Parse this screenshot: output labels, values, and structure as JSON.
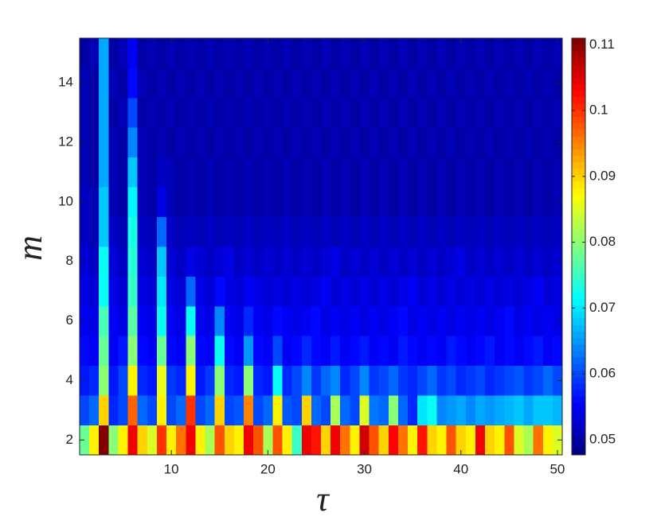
{
  "chart_data": {
    "type": "heatmap",
    "xlabel": "τ",
    "ylabel": "m",
    "colormap": "jet",
    "x": [
      1,
      2,
      3,
      4,
      5,
      6,
      7,
      8,
      9,
      10,
      11,
      12,
      13,
      14,
      15,
      16,
      17,
      18,
      19,
      20,
      21,
      22,
      23,
      24,
      25,
      26,
      27,
      28,
      29,
      30,
      31,
      32,
      33,
      34,
      35,
      36,
      37,
      38,
      39,
      40,
      41,
      42,
      43,
      44,
      45,
      46,
      47,
      48,
      49,
      50
    ],
    "y": [
      2,
      3,
      4,
      5,
      6,
      7,
      8,
      9,
      10,
      11,
      12,
      13,
      14,
      15
    ],
    "xlim": [
      0.5,
      50.5
    ],
    "ylim": [
      1.5,
      15.5
    ],
    "xticks": [
      10,
      20,
      30,
      40,
      50
    ],
    "yticks": [
      2,
      4,
      6,
      8,
      10,
      12,
      14
    ],
    "clim": [
      0.0477,
      0.111
    ],
    "cticks": [
      0.05,
      0.06,
      0.07,
      0.08,
      0.09,
      0.1,
      0.11
    ],
    "z": [
      [
        0.078,
        0.088,
        0.111,
        0.08,
        0.088,
        0.104,
        0.09,
        0.085,
        0.1,
        0.088,
        0.096,
        0.104,
        0.088,
        0.082,
        0.098,
        0.09,
        0.088,
        0.104,
        0.098,
        0.082,
        0.098,
        0.088,
        0.075,
        0.104,
        0.102,
        0.09,
        0.104,
        0.096,
        0.088,
        0.106,
        0.098,
        0.09,
        0.103,
        0.096,
        0.088,
        0.102,
        0.09,
        0.088,
        0.098,
        0.09,
        0.088,
        0.104,
        0.09,
        0.088,
        0.098,
        0.085,
        0.082,
        0.096,
        0.088,
        0.085
      ],
      [
        0.06,
        0.062,
        0.09,
        0.058,
        0.06,
        0.097,
        0.062,
        0.06,
        0.088,
        0.06,
        0.062,
        0.1,
        0.06,
        0.062,
        0.09,
        0.06,
        0.061,
        0.095,
        0.06,
        0.062,
        0.088,
        0.061,
        0.06,
        0.09,
        0.062,
        0.06,
        0.082,
        0.062,
        0.06,
        0.085,
        0.063,
        0.062,
        0.08,
        0.062,
        0.058,
        0.07,
        0.072,
        0.064,
        0.065,
        0.066,
        0.064,
        0.066,
        0.065,
        0.066,
        0.067,
        0.068,
        0.066,
        0.068,
        0.068,
        0.067
      ],
      [
        0.057,
        0.058,
        0.08,
        0.057,
        0.06,
        0.088,
        0.058,
        0.057,
        0.086,
        0.059,
        0.058,
        0.088,
        0.057,
        0.059,
        0.08,
        0.058,
        0.057,
        0.08,
        0.058,
        0.057,
        0.072,
        0.058,
        0.06,
        0.064,
        0.059,
        0.062,
        0.064,
        0.058,
        0.06,
        0.064,
        0.059,
        0.06,
        0.062,
        0.059,
        0.058,
        0.06,
        0.062,
        0.059,
        0.06,
        0.058,
        0.059,
        0.06,
        0.058,
        0.059,
        0.06,
        0.061,
        0.059,
        0.06,
        0.062,
        0.06
      ],
      [
        0.056,
        0.055,
        0.078,
        0.055,
        0.057,
        0.08,
        0.056,
        0.055,
        0.078,
        0.056,
        0.055,
        0.08,
        0.056,
        0.055,
        0.072,
        0.056,
        0.055,
        0.065,
        0.056,
        0.055,
        0.06,
        0.055,
        0.056,
        0.058,
        0.056,
        0.055,
        0.057,
        0.055,
        0.056,
        0.057,
        0.055,
        0.056,
        0.055,
        0.057,
        0.056,
        0.055,
        0.056,
        0.055,
        0.057,
        0.056,
        0.055,
        0.056,
        0.057,
        0.055,
        0.056,
        0.055,
        0.056,
        0.057,
        0.055,
        0.056
      ],
      [
        0.055,
        0.054,
        0.076,
        0.055,
        0.054,
        0.077,
        0.055,
        0.054,
        0.072,
        0.055,
        0.054,
        0.072,
        0.055,
        0.054,
        0.064,
        0.055,
        0.054,
        0.058,
        0.055,
        0.054,
        0.056,
        0.055,
        0.054,
        0.055,
        0.056,
        0.054,
        0.055,
        0.054,
        0.055,
        0.054,
        0.055,
        0.054,
        0.055,
        0.056,
        0.054,
        0.055,
        0.054,
        0.055,
        0.054,
        0.055,
        0.054,
        0.055,
        0.054,
        0.055,
        0.056,
        0.054,
        0.055,
        0.054,
        0.055,
        0.054
      ],
      [
        0.054,
        0.053,
        0.072,
        0.054,
        0.053,
        0.075,
        0.054,
        0.053,
        0.07,
        0.054,
        0.053,
        0.062,
        0.054,
        0.053,
        0.056,
        0.054,
        0.053,
        0.055,
        0.054,
        0.053,
        0.054,
        0.053,
        0.054,
        0.053,
        0.054,
        0.055,
        0.053,
        0.054,
        0.053,
        0.054,
        0.053,
        0.054,
        0.053,
        0.054,
        0.055,
        0.053,
        0.054,
        0.053,
        0.054,
        0.053,
        0.054,
        0.053,
        0.054,
        0.053,
        0.054,
        0.053,
        0.054,
        0.055,
        0.053,
        0.054
      ],
      [
        0.053,
        0.052,
        0.072,
        0.053,
        0.052,
        0.074,
        0.053,
        0.052,
        0.068,
        0.053,
        0.052,
        0.054,
        0.053,
        0.052,
        0.053,
        0.054,
        0.052,
        0.053,
        0.052,
        0.053,
        0.052,
        0.053,
        0.052,
        0.053,
        0.052,
        0.053,
        0.054,
        0.052,
        0.053,
        0.052,
        0.053,
        0.052,
        0.053,
        0.052,
        0.053,
        0.052,
        0.053,
        0.052,
        0.053,
        0.054,
        0.052,
        0.053,
        0.052,
        0.053,
        0.052,
        0.053,
        0.052,
        0.053,
        0.052,
        0.053
      ],
      [
        0.052,
        0.051,
        0.068,
        0.052,
        0.051,
        0.073,
        0.052,
        0.051,
        0.062,
        0.052,
        0.051,
        0.052,
        0.051,
        0.052,
        0.051,
        0.052,
        0.051,
        0.052,
        0.051,
        0.052,
        0.051,
        0.052,
        0.051,
        0.052,
        0.051,
        0.052,
        0.051,
        0.052,
        0.051,
        0.052,
        0.051,
        0.052,
        0.051,
        0.052,
        0.051,
        0.052,
        0.051,
        0.052,
        0.051,
        0.052,
        0.051,
        0.052,
        0.051,
        0.052,
        0.051,
        0.052,
        0.051,
        0.052,
        0.051,
        0.052
      ],
      [
        0.052,
        0.051,
        0.068,
        0.051,
        0.05,
        0.071,
        0.051,
        0.05,
        0.054,
        0.051,
        0.05,
        0.051,
        0.05,
        0.051,
        0.05,
        0.051,
        0.05,
        0.051,
        0.05,
        0.051,
        0.05,
        0.051,
        0.05,
        0.051,
        0.05,
        0.051,
        0.05,
        0.051,
        0.05,
        0.051,
        0.05,
        0.051,
        0.05,
        0.051,
        0.05,
        0.051,
        0.05,
        0.051,
        0.05,
        0.051,
        0.05,
        0.051,
        0.05,
        0.051,
        0.05,
        0.051,
        0.05,
        0.051,
        0.05,
        0.051
      ],
      [
        0.051,
        0.05,
        0.066,
        0.051,
        0.05,
        0.068,
        0.051,
        0.05,
        0.052,
        0.051,
        0.05,
        0.051,
        0.05,
        0.051,
        0.05,
        0.051,
        0.05,
        0.051,
        0.05,
        0.051,
        0.05,
        0.051,
        0.05,
        0.051,
        0.05,
        0.051,
        0.05,
        0.051,
        0.05,
        0.051,
        0.05,
        0.051,
        0.05,
        0.051,
        0.05,
        0.051,
        0.05,
        0.051,
        0.05,
        0.051,
        0.05,
        0.051,
        0.05,
        0.051,
        0.05,
        0.051,
        0.05,
        0.051,
        0.05,
        0.051
      ],
      [
        0.051,
        0.05,
        0.066,
        0.051,
        0.05,
        0.064,
        0.051,
        0.05,
        0.051,
        0.05,
        0.051,
        0.05,
        0.051,
        0.05,
        0.051,
        0.05,
        0.051,
        0.05,
        0.051,
        0.05,
        0.051,
        0.05,
        0.051,
        0.05,
        0.051,
        0.05,
        0.051,
        0.05,
        0.051,
        0.05,
        0.051,
        0.05,
        0.051,
        0.05,
        0.051,
        0.05,
        0.051,
        0.05,
        0.051,
        0.05,
        0.051,
        0.05,
        0.051,
        0.05,
        0.051,
        0.05,
        0.051,
        0.05,
        0.051,
        0.05
      ],
      [
        0.051,
        0.05,
        0.066,
        0.05,
        0.051,
        0.06,
        0.05,
        0.051,
        0.05,
        0.051,
        0.05,
        0.051,
        0.05,
        0.051,
        0.05,
        0.051,
        0.05,
        0.051,
        0.05,
        0.051,
        0.05,
        0.051,
        0.05,
        0.051,
        0.05,
        0.051,
        0.05,
        0.051,
        0.05,
        0.051,
        0.05,
        0.051,
        0.05,
        0.051,
        0.05,
        0.051,
        0.05,
        0.051,
        0.05,
        0.051,
        0.05,
        0.051,
        0.05,
        0.051,
        0.05,
        0.051,
        0.05,
        0.051,
        0.05,
        0.051
      ],
      [
        0.051,
        0.05,
        0.066,
        0.051,
        0.05,
        0.056,
        0.051,
        0.05,
        0.051,
        0.05,
        0.051,
        0.05,
        0.051,
        0.05,
        0.051,
        0.05,
        0.051,
        0.05,
        0.051,
        0.05,
        0.051,
        0.05,
        0.051,
        0.05,
        0.051,
        0.05,
        0.051,
        0.05,
        0.051,
        0.05,
        0.051,
        0.05,
        0.051,
        0.05,
        0.051,
        0.05,
        0.051,
        0.05,
        0.051,
        0.05,
        0.051,
        0.05,
        0.051,
        0.05,
        0.051,
        0.05,
        0.051,
        0.05,
        0.051,
        0.05
      ],
      [
        0.05,
        0.051,
        0.066,
        0.05,
        0.051,
        0.055,
        0.05,
        0.051,
        0.05,
        0.051,
        0.05,
        0.051,
        0.05,
        0.051,
        0.05,
        0.051,
        0.05,
        0.051,
        0.05,
        0.051,
        0.05,
        0.051,
        0.05,
        0.051,
        0.05,
        0.051,
        0.05,
        0.051,
        0.05,
        0.051,
        0.05,
        0.051,
        0.05,
        0.051,
        0.05,
        0.051,
        0.05,
        0.051,
        0.05,
        0.051,
        0.05,
        0.051,
        0.05,
        0.051,
        0.05,
        0.051,
        0.05,
        0.051,
        0.05,
        0.051
      ]
    ]
  }
}
